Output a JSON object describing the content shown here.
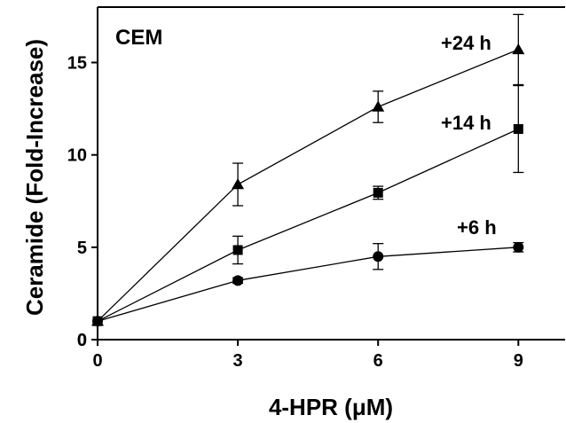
{
  "chart_data": {
    "type": "line",
    "panel_label": "CEM",
    "xlabel": "4-HPR (μM)",
    "ylabel": "Ceramide (Fold-Increase)",
    "xlim": [
      0,
      10
    ],
    "ylim": [
      0,
      18
    ],
    "xticks": [
      0,
      3,
      6,
      9
    ],
    "yticks": [
      0,
      5,
      10,
      15
    ],
    "grid": false,
    "legend": "none",
    "series": [
      {
        "label": "+24 h",
        "marker": "triangle",
        "x": [
          0,
          3,
          6,
          9
        ],
        "y": [
          1.0,
          8.4,
          12.6,
          15.7
        ],
        "err": [
          0.0,
          1.15,
          0.85,
          1.9
        ]
      },
      {
        "label": "+14 h",
        "marker": "square",
        "x": [
          0,
          3,
          6,
          9
        ],
        "y": [
          1.0,
          4.85,
          7.95,
          11.4
        ],
        "err": [
          0.0,
          0.75,
          0.35,
          2.35
        ]
      },
      {
        "label": "+6 h",
        "marker": "circle",
        "x": [
          0,
          3,
          6,
          9
        ],
        "y": [
          1.0,
          3.2,
          4.5,
          5.0
        ],
        "err": [
          0.0,
          0.15,
          0.7,
          0.25
        ]
      }
    ]
  }
}
